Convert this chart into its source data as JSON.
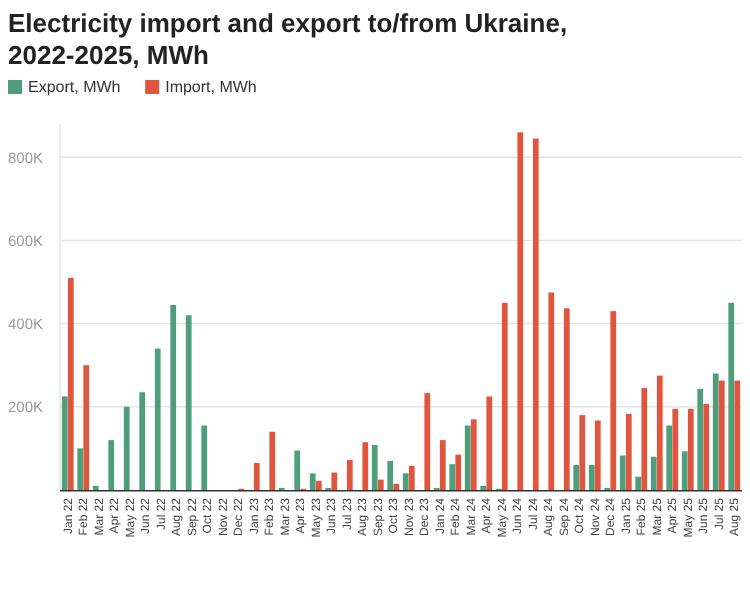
{
  "chart_data": {
    "type": "bar",
    "title": "Electricity import and export to/from Ukraine, 2022-2025, MWh",
    "categories": [
      "Jan 22",
      "Feb 22",
      "Mar 22",
      "Apr 22",
      "May 22",
      "Jun 22",
      "Jul 22",
      "Aug 22",
      "Sep 22",
      "Oct 22",
      "Nov 22",
      "Dec 22",
      "Jan 23",
      "Feb 23",
      "Mar 23",
      "Apr 23",
      "May 23",
      "Jun 23",
      "Jul 23",
      "Aug 23",
      "Sep 23",
      "Oct 23",
      "Nov 23",
      "Dec 23",
      "Jan 24",
      "Feb 24",
      "Mar 24",
      "Apr 24",
      "May 24",
      "Jun 24",
      "Jul 24",
      "Aug 24",
      "Sep 24",
      "Oct 24",
      "Nov 24",
      "Dec 24",
      "Jan 25",
      "Feb 25",
      "Mar 25",
      "Apr 25",
      "May 25",
      "Jun 25",
      "Jul 25",
      "Aug 25"
    ],
    "series": [
      {
        "name": "Export, MWh",
        "color": "#4f9e7b",
        "values": [
          225000,
          100000,
          10000,
          120000,
          200000,
          235000,
          340000,
          445000,
          420000,
          155000,
          0,
          0,
          0,
          0,
          5000,
          95000,
          40000,
          5000,
          0,
          0,
          108000,
          70000,
          40000,
          0,
          5000,
          62000,
          155000,
          10000,
          3000,
          0,
          0,
          0,
          0,
          60000,
          60000,
          5000,
          83000,
          32000,
          80000,
          155000,
          93000,
          243000,
          280000,
          450000
        ]
      },
      {
        "name": "Import, MWh",
        "color": "#e0553d",
        "values": [
          510000,
          300000,
          0,
          0,
          0,
          0,
          0,
          0,
          0,
          0,
          0,
          3000,
          65000,
          140000,
          0,
          3000,
          22000,
          42000,
          72000,
          115000,
          25000,
          15000,
          58000,
          233000,
          120000,
          85000,
          170000,
          225000,
          450000,
          860000,
          845000,
          475000,
          437000,
          180000,
          167000,
          430000,
          183000,
          245000,
          275000,
          195000,
          195000,
          207000,
          263000,
          263000
        ]
      }
    ],
    "ylim": [
      0,
      880000
    ],
    "yticks": [
      {
        "value": 200000,
        "label": "200K"
      },
      {
        "value": 400000,
        "label": "400K"
      },
      {
        "value": 600000,
        "label": "600K"
      },
      {
        "value": 800000,
        "label": "800K"
      }
    ],
    "grid": "y",
    "legend": "top left"
  }
}
